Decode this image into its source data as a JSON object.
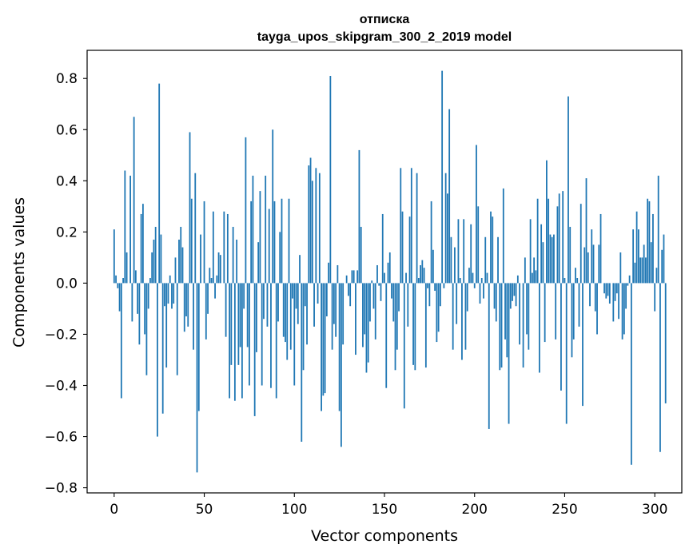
{
  "chart_data": {
    "type": "bar",
    "title": "отписка",
    "subtitle": "tayga_upos_skipgram_300_2_2019 model",
    "xlabel": "Vector components",
    "ylabel": "Components values",
    "xlim": [
      -15,
      315
    ],
    "ylim": [
      -0.82,
      0.91
    ],
    "xticks": [
      0,
      50,
      100,
      150,
      200,
      250,
      300
    ],
    "xtick_labels": [
      "0",
      "50",
      "100",
      "150",
      "200",
      "250",
      "300"
    ],
    "yticks": [
      -0.8,
      -0.6,
      -0.4,
      -0.2,
      0.0,
      0.2,
      0.4,
      0.6,
      0.8
    ],
    "ytick_labels": [
      "−0.8",
      "−0.6",
      "−0.4",
      "−0.2",
      "0.0",
      "0.2",
      "0.4",
      "0.6",
      "0.8"
    ],
    "bar_color": "#1f77b4",
    "grid": false,
    "values": [
      0.21,
      0.03,
      -0.02,
      -0.11,
      -0.45,
      0.02,
      0.44,
      0.12,
      0.0,
      0.42,
      -0.15,
      0.65,
      0.05,
      -0.12,
      -0.24,
      0.27,
      0.31,
      -0.2,
      -0.36,
      -0.1,
      0.02,
      0.12,
      0.17,
      0.22,
      -0.6,
      0.78,
      0.19,
      -0.51,
      -0.09,
      -0.33,
      -0.08,
      0.03,
      -0.1,
      -0.08,
      0.1,
      -0.36,
      0.17,
      0.22,
      0.14,
      -0.19,
      -0.13,
      -0.17,
      0.59,
      0.33,
      -0.26,
      0.43,
      -0.74,
      -0.5,
      0.19,
      0.0,
      0.32,
      -0.22,
      -0.12,
      0.06,
      0.02,
      0.28,
      -0.06,
      0.03,
      0.12,
      0.11,
      0.0,
      0.28,
      -0.21,
      0.27,
      -0.45,
      -0.32,
      0.22,
      -0.46,
      0.17,
      -0.32,
      -0.25,
      -0.45,
      -0.1,
      0.57,
      -0.25,
      -0.4,
      0.32,
      0.42,
      -0.52,
      -0.27,
      0.16,
      0.36,
      -0.4,
      -0.14,
      0.42,
      -0.17,
      0.29,
      -0.41,
      0.6,
      0.32,
      -0.45,
      -0.15,
      0.2,
      0.33,
      -0.21,
      -0.23,
      -0.3,
      0.33,
      -0.26,
      -0.06,
      -0.4,
      -0.1,
      -0.16,
      0.11,
      -0.62,
      -0.34,
      -0.09,
      -0.24,
      0.46,
      0.49,
      0.4,
      -0.17,
      0.45,
      -0.08,
      0.43,
      -0.5,
      -0.44,
      -0.43,
      -0.13,
      0.08,
      0.81,
      -0.26,
      -0.16,
      -0.21,
      0.07,
      -0.5,
      -0.64,
      -0.24,
      0.0,
      0.03,
      -0.05,
      -0.09,
      0.05,
      0.05,
      -0.28,
      0.05,
      0.52,
      0.22,
      -0.25,
      -0.2,
      -0.35,
      -0.31,
      -0.15,
      0.01,
      -0.1,
      -0.22,
      0.07,
      -0.01,
      -0.07,
      0.27,
      0.04,
      -0.41,
      0.08,
      0.12,
      -0.06,
      -0.15,
      -0.34,
      -0.26,
      -0.11,
      0.45,
      0.28,
      -0.49,
      0.04,
      -0.17,
      0.26,
      0.45,
      -0.32,
      -0.34,
      0.43,
      0.02,
      0.07,
      0.09,
      0.06,
      -0.33,
      -0.02,
      -0.09,
      0.32,
      0.13,
      -0.03,
      -0.23,
      -0.19,
      -0.09,
      0.83,
      -0.02,
      0.43,
      0.35,
      0.68,
      0.18,
      -0.26,
      0.14,
      -0.16,
      0.25,
      0.02,
      -0.3,
      0.25,
      -0.26,
      -0.11,
      0.06,
      0.23,
      0.04,
      -0.02,
      0.54,
      0.3,
      -0.08,
      0.02,
      -0.06,
      0.18,
      0.04,
      -0.57,
      0.28,
      0.26,
      -0.1,
      -0.15,
      0.18,
      -0.34,
      -0.33,
      0.37,
      -0.22,
      -0.29,
      -0.55,
      -0.1,
      -0.07,
      -0.05,
      -0.09,
      0.03,
      -0.24,
      0.0,
      -0.33,
      0.1,
      -0.2,
      -0.26,
      0.25,
      0.04,
      0.1,
      0.05,
      0.33,
      -0.35,
      0.23,
      0.16,
      -0.23,
      0.48,
      0.33,
      0.19,
      0.18,
      0.19,
      -0.22,
      0.3,
      0.35,
      -0.42,
      0.36,
      0.02,
      -0.55,
      0.73,
      0.22,
      -0.29,
      -0.22,
      0.06,
      0.02,
      -0.17,
      0.31,
      -0.48,
      0.14,
      0.41,
      0.12,
      -0.09,
      0.21,
      0.15,
      -0.11,
      -0.2,
      0.15,
      0.27,
      0.0,
      -0.04,
      -0.06,
      -0.05,
      -0.08,
      0.0,
      -0.15,
      -0.07,
      -0.04,
      -0.14,
      0.12,
      -0.22,
      -0.2,
      -0.1,
      -0.01,
      0.03,
      -0.71,
      0.21,
      0.08,
      0.28,
      0.21,
      0.1,
      0.1,
      0.15,
      0.1,
      0.33,
      0.32,
      0.16,
      0.27,
      -0.11,
      0.06,
      0.42,
      -0.66,
      0.13,
      0.19,
      -0.47
    ]
  }
}
